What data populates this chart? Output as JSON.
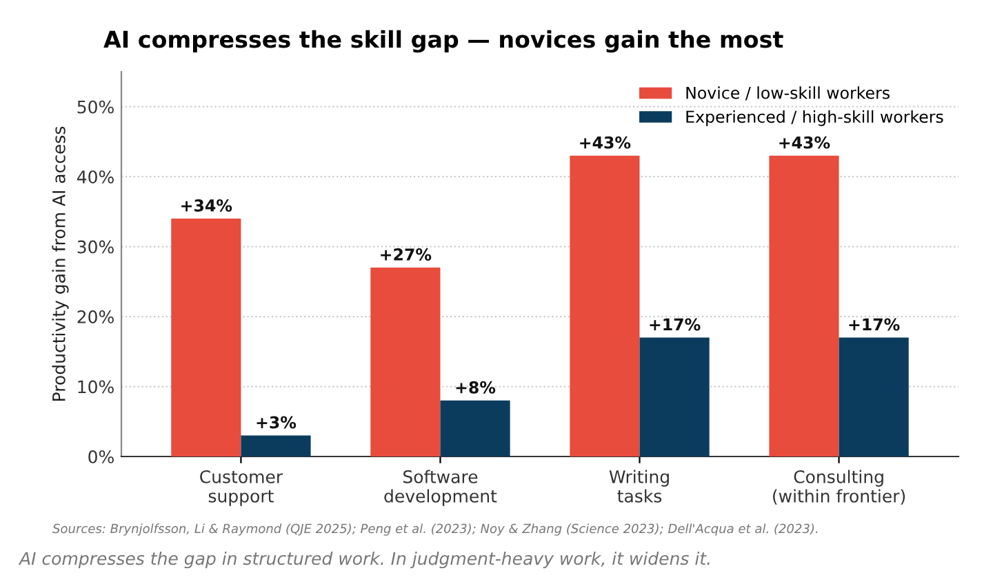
{
  "chart_data": {
    "type": "bar",
    "title": "AI compresses the skill gap — novices gain the most",
    "ylabel": "Productivity gain from AI access",
    "categories": [
      "Customer\nsupport",
      "Software\ndevelopment",
      "Writing\ntasks",
      "Consulting\n(within frontier)"
    ],
    "series": [
      {
        "name": "Novice / low-skill workers",
        "color": "#e74c3c",
        "values": [
          34,
          27,
          43,
          43
        ],
        "value_labels": [
          "+34%",
          "+27%",
          "+43%",
          "+43%"
        ]
      },
      {
        "name": "Experienced / high-skill workers",
        "color": "#0b3c5d",
        "values": [
          3,
          8,
          17,
          17
        ],
        "value_labels": [
          "+3%",
          "+8%",
          "+17%",
          "+17%"
        ]
      }
    ],
    "ylim": [
      0,
      55
    ],
    "yticks": [
      {
        "value": 0,
        "label": "0%"
      },
      {
        "value": 10,
        "label": "10%"
      },
      {
        "value": 20,
        "label": "20%"
      },
      {
        "value": 30,
        "label": "30%"
      },
      {
        "value": 40,
        "label": "40%"
      },
      {
        "value": 50,
        "label": "50%"
      }
    ],
    "grid": "y",
    "legend": "top right",
    "annotations": [
      "Sources: Brynjolfsson, Li & Raymond (QJE 2025); Peng et al. (2023); Noy & Zhang (Science 2023); Dell'Acqua et al. (2023).",
      "AI compresses the gap in structured work. In judgment-heavy work, it widens it."
    ]
  }
}
